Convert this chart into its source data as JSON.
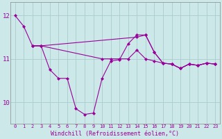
{
  "background_color": "#cce8e8",
  "grid_color": "#aacccc",
  "line_color": "#990099",
  "xlabel": "Windchill (Refroidissement éolien,°C)",
  "xlim": [
    -0.5,
    23.5
  ],
  "ylim": [
    9.5,
    12.3
  ],
  "yticks": [
    10,
    11,
    12
  ],
  "xticks": [
    0,
    1,
    2,
    3,
    4,
    5,
    6,
    7,
    8,
    9,
    10,
    11,
    12,
    13,
    14,
    15,
    16,
    17,
    18,
    19,
    20,
    21,
    22,
    23
  ],
  "series1_x": [
    0,
    1,
    2,
    3,
    4,
    5,
    6,
    7,
    8,
    9,
    10,
    11,
    12,
    13,
    14,
    15,
    16,
    17,
    18,
    19,
    20,
    21,
    22,
    23
  ],
  "series1_y": [
    12.0,
    11.75,
    11.3,
    11.3,
    10.75,
    10.55,
    10.55,
    9.85,
    9.72,
    9.75,
    10.55,
    10.95,
    10.98,
    11.35,
    11.55,
    11.55,
    11.15,
    10.9,
    10.88,
    10.78,
    10.88,
    10.85,
    10.9,
    10.88
  ],
  "series2_x": [
    2,
    3,
    14,
    15,
    16,
    17,
    18,
    19,
    20,
    21,
    22,
    23
  ],
  "series2_y": [
    11.3,
    11.3,
    11.5,
    11.55,
    11.15,
    10.9,
    10.88,
    10.78,
    10.88,
    10.85,
    10.9,
    10.88
  ],
  "series3_x": [
    2,
    3,
    10,
    11,
    12,
    13,
    14,
    15,
    16,
    17,
    18,
    19,
    20,
    21,
    22,
    23
  ],
  "series3_y": [
    11.3,
    11.3,
    11.0,
    11.0,
    11.0,
    11.0,
    11.2,
    11.0,
    10.95,
    10.9,
    10.88,
    10.78,
    10.88,
    10.85,
    10.9,
    10.88
  ],
  "marker": "D",
  "markersize": 2.2,
  "linewidth": 0.8,
  "tick_fontsize": 5.0,
  "xlabel_fontsize": 6.0,
  "ytick_fontsize": 6.5
}
